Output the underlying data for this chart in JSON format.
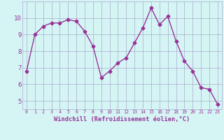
{
  "x": [
    0,
    1,
    2,
    3,
    4,
    5,
    6,
    7,
    8,
    9,
    10,
    11,
    12,
    13,
    14,
    15,
    16,
    17,
    18,
    19,
    20,
    21,
    22,
    23
  ],
  "y": [
    6.8,
    9.0,
    9.5,
    9.7,
    9.7,
    9.9,
    9.8,
    9.2,
    8.3,
    6.4,
    6.8,
    7.3,
    7.6,
    8.5,
    9.4,
    10.6,
    9.6,
    10.1,
    8.6,
    7.4,
    6.8,
    5.8,
    5.7,
    4.8
  ],
  "line_color": "#993399",
  "marker": "D",
  "markersize": 2.5,
  "bg_color": "#d5f5f5",
  "grid_color": "#aaaacc",
  "xlabel": "Windchill (Refroidissement éolien,°C)",
  "xlabel_color": "#993399",
  "tick_color": "#993399",
  "ylim": [
    4.5,
    11.0
  ],
  "xlim": [
    -0.5,
    23.5
  ],
  "yticks": [
    5,
    6,
    7,
    8,
    9,
    10
  ],
  "xticks": [
    0,
    1,
    2,
    3,
    4,
    5,
    6,
    7,
    8,
    9,
    10,
    11,
    12,
    13,
    14,
    15,
    16,
    17,
    18,
    19,
    20,
    21,
    22,
    23
  ]
}
